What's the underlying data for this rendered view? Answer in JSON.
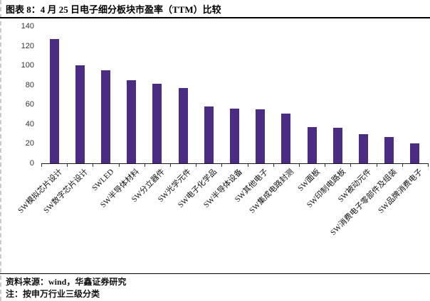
{
  "header": {
    "figure_title": "图表 8：4 月 25 日电子细分板块市盈率（TTM）比较"
  },
  "footer": {
    "source": "资料来源：wind，华鑫证券研究",
    "note": "注：按申万行业三级分类"
  },
  "chart_data": {
    "type": "bar",
    "title": "",
    "xlabel": "",
    "ylabel": "",
    "categories": [
      "SW模拟芯片设计",
      "SW数字芯片设计",
      "SWLED",
      "SW半导体材料",
      "SW分立器件",
      "SW光学元件",
      "SW电子化学品",
      "SW半导体设备",
      "SW其他电子",
      "SW集成电路封测",
      "SW面板",
      "SW印制电路板",
      "SW被动元件",
      "SW消费电子零部件及组装",
      "SW品牌消费电子"
    ],
    "values": [
      127,
      100,
      95,
      85,
      81,
      77,
      58,
      56,
      55,
      51,
      37,
      36,
      30,
      27,
      20
    ],
    "ylim": [
      0,
      140
    ],
    "yticks": [
      0,
      20,
      40,
      60,
      80,
      100,
      120,
      140
    ],
    "bar_color": "#4A2D82",
    "grid": false,
    "legend_position": "none",
    "x_labels_rotation_deg": 45
  }
}
